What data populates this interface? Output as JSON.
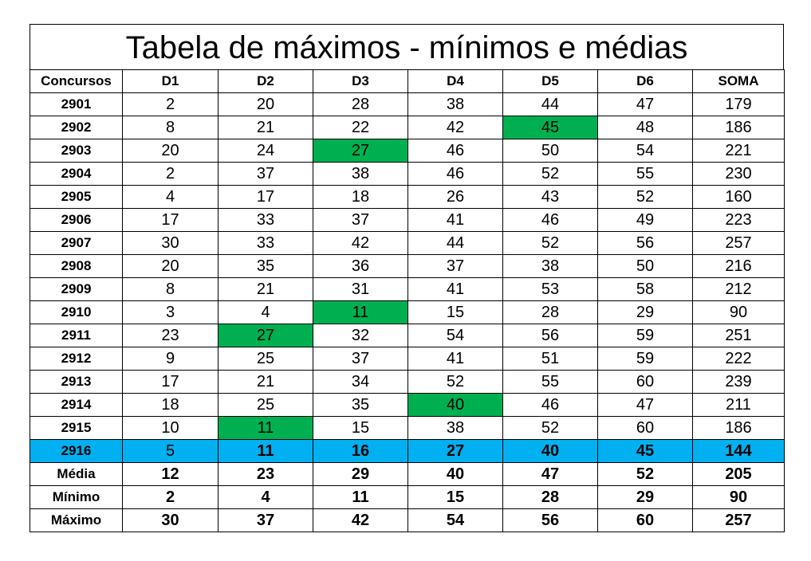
{
  "title": "Tabela de máximos - mínimos e médias",
  "table": {
    "header": [
      "Concursos",
      "D1",
      "D2",
      "D3",
      "D4",
      "D5",
      "D6",
      "SOMA"
    ],
    "rows": [
      [
        "2901",
        "2",
        "20",
        "28",
        "38",
        "44",
        "47",
        "179"
      ],
      [
        "2902",
        "8",
        "21",
        "22",
        "42",
        {
          "text": "45",
          "fill": "#00b050"
        },
        "48",
        "186"
      ],
      [
        "2903",
        "20",
        "24",
        {
          "text": "27",
          "fill": "#00b050"
        },
        "46",
        "50",
        "54",
        "221"
      ],
      [
        "2904",
        "2",
        "37",
        "38",
        "46",
        "52",
        "55",
        "230"
      ],
      [
        "2905",
        "4",
        "17",
        "18",
        "26",
        "43",
        "52",
        "160"
      ],
      [
        "2906",
        "17",
        "33",
        "37",
        "41",
        "46",
        "49",
        "223"
      ],
      [
        "2907",
        "30",
        "33",
        "42",
        "44",
        "52",
        "56",
        "257"
      ],
      [
        "2908",
        "20",
        "35",
        "36",
        "37",
        "38",
        "50",
        "216"
      ],
      [
        "2909",
        "8",
        "21",
        "31",
        "41",
        "53",
        "58",
        "212"
      ],
      [
        "2910",
        "3",
        "4",
        {
          "text": "11",
          "fill": "#00b050"
        },
        "15",
        "28",
        "29",
        "90"
      ],
      [
        "2911",
        "23",
        {
          "text": "27",
          "fill": "#00b050"
        },
        "32",
        "54",
        "56",
        "59",
        "251"
      ],
      [
        "2912",
        "9",
        "25",
        "37",
        "41",
        "51",
        "59",
        "222"
      ],
      [
        "2913",
        "17",
        "21",
        "34",
        "52",
        "55",
        "60",
        "239"
      ],
      [
        "2914",
        "18",
        "25",
        "35",
        {
          "text": "40",
          "fill": "#00b050"
        },
        "46",
        "47",
        "211"
      ],
      [
        "2915",
        "10",
        {
          "text": "11",
          "fill": "#00b050"
        },
        "15",
        "38",
        "52",
        "60",
        "186"
      ]
    ],
    "current_row": {
      "fill": "#00b0f0",
      "bold": true,
      "cells": [
        "2916",
        {
          "text": "5",
          "bold": false
        },
        "11",
        "16",
        "27",
        "40",
        "45",
        "144"
      ]
    },
    "summary": [
      [
        "Média",
        "12",
        "23",
        "29",
        "40",
        "47",
        "52",
        "205"
      ],
      [
        "Mínimo",
        "2",
        "4",
        "11",
        "15",
        "28",
        "29",
        "90"
      ],
      [
        "Máximo",
        "30",
        "37",
        "42",
        "54",
        "56",
        "60",
        "257"
      ]
    ]
  }
}
